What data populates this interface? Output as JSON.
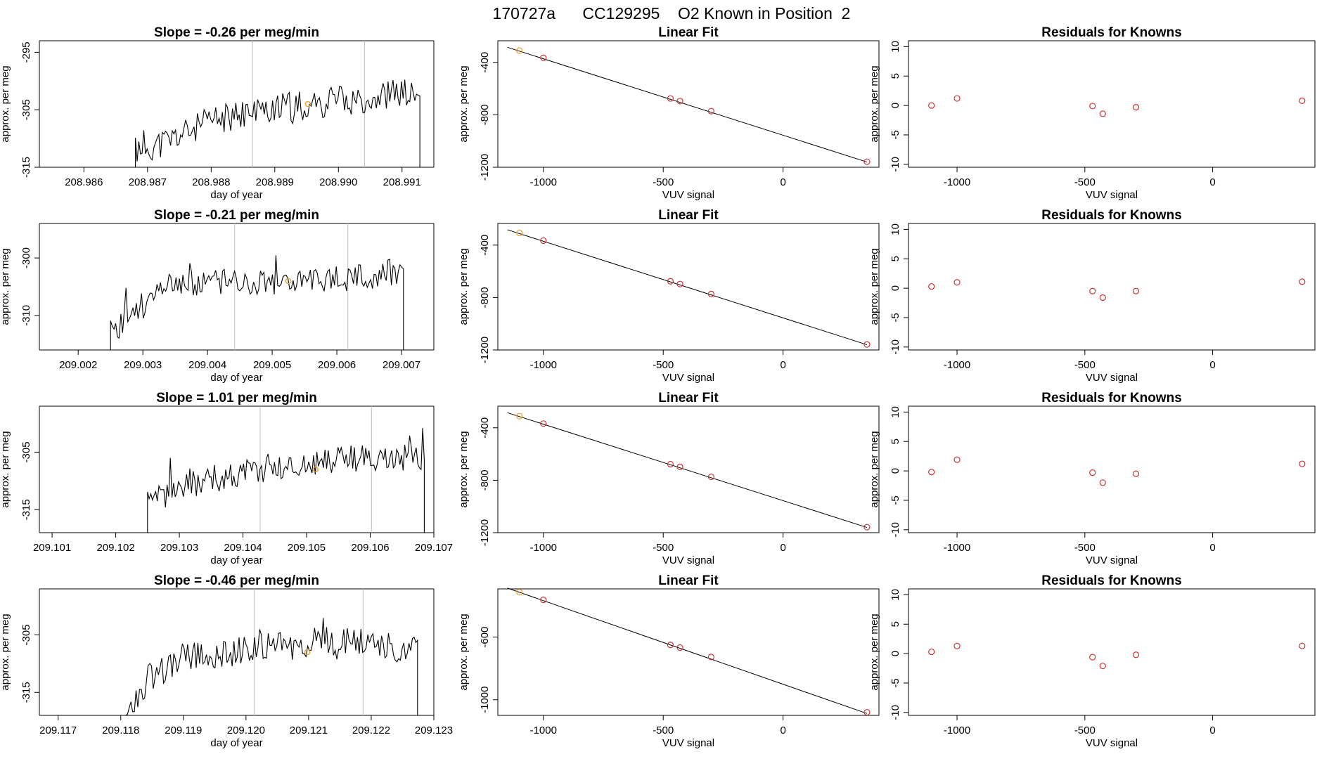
{
  "page_title": "170727a      CC129295    O2 Known in Position  2",
  "colors": {
    "line": "#000000",
    "fit_point": "#cd3333",
    "known_point": "#e8a23a",
    "divider": "#bfbfbf"
  },
  "chart_data": [
    {
      "type": "line",
      "row": 1,
      "panel": "time-series",
      "title": "Slope =  -0.26  per meg/min",
      "xlabel": "day of year",
      "ylabel": "approx. per meg",
      "xlim": [
        208.9853,
        208.9915
      ],
      "ylim": [
        -315,
        -293
      ],
      "xticks": [
        {
          "v": 208.986,
          "label": "208.986"
        },
        {
          "v": 208.987,
          "label": "208.987"
        },
        {
          "v": 208.988,
          "label": "208.988"
        },
        {
          "v": 208.989,
          "label": "208.989"
        },
        {
          "v": 208.99,
          "label": "208.990"
        },
        {
          "v": 208.991,
          "label": "208.991"
        }
      ],
      "yticks": [
        {
          "v": -295,
          "label": "-295"
        },
        {
          "v": -305,
          "label": "-305"
        },
        {
          "v": -315,
          "label": "-315"
        }
      ],
      "signal_start": 208.98681,
      "signal_end": 208.99128,
      "signal_seed": 11,
      "signal_mean": [
        [
          208.98681,
          -312
        ],
        [
          208.9872,
          -311
        ],
        [
          208.988,
          -307
        ],
        [
          208.9888,
          -305
        ],
        [
          208.9896,
          -304
        ],
        [
          208.9904,
          -303
        ],
        [
          208.991,
          -302
        ],
        [
          208.99125,
          -303
        ]
      ],
      "signal_noise": 2.6,
      "vlines": [
        208.98865,
        208.99041
      ],
      "known_mark": {
        "x": 208.98952,
        "y": -304
      }
    },
    {
      "type": "scatter",
      "row": 1,
      "panel": "linear-fit",
      "title": "Linear Fit",
      "xlabel": "VUV signal",
      "ylabel": "approx. per meg",
      "xlim": [
        -1190,
        400
      ],
      "ylim": [
        -1200,
        -235
      ],
      "xticks": [
        {
          "v": -1000,
          "label": "-1000"
        },
        {
          "v": -500,
          "label": "-500"
        },
        {
          "v": 0,
          "label": "0"
        }
      ],
      "yticks": [
        {
          "v": -400,
          "label": "-400"
        },
        {
          "v": -800,
          "label": "-800"
        },
        {
          "v": -1200,
          "label": "-1200"
        }
      ],
      "points": [
        {
          "x": -1100,
          "y": -310,
          "known": true
        },
        {
          "x": -1000,
          "y": -365
        },
        {
          "x": -470,
          "y": -675
        },
        {
          "x": -430,
          "y": -695
        },
        {
          "x": -300,
          "y": -772
        },
        {
          "x": 350,
          "y": -1158
        }
      ],
      "fit_line": [
        [
          -1150,
          -285
        ],
        [
          350,
          -1160
        ]
      ]
    },
    {
      "type": "scatter",
      "row": 1,
      "panel": "residuals",
      "title": "Residuals for Knowns",
      "xlabel": "VUV signal",
      "ylabel": "approx. per meg",
      "xlim": [
        -1190,
        400
      ],
      "ylim": [
        -10.5,
        11
      ],
      "xticks": [
        {
          "v": -1000,
          "label": "-1000"
        },
        {
          "v": -500,
          "label": "-500"
        },
        {
          "v": 0,
          "label": "0"
        }
      ],
      "yticks": [
        {
          "v": 10,
          "label": "10"
        },
        {
          "v": 5,
          "label": "5"
        },
        {
          "v": 0,
          "label": "0"
        },
        {
          "v": -5,
          "label": "-5"
        },
        {
          "v": -10,
          "label": "-10"
        }
      ],
      "points": [
        {
          "x": -1100,
          "y": 0
        },
        {
          "x": -1000,
          "y": 1.2
        },
        {
          "x": -470,
          "y": -0.1
        },
        {
          "x": -430,
          "y": -1.4
        },
        {
          "x": -300,
          "y": -0.3
        },
        {
          "x": 350,
          "y": 0.8
        }
      ]
    },
    {
      "type": "line",
      "row": 2,
      "panel": "time-series",
      "title": "Slope =  -0.21  per meg/min",
      "xlabel": "day of year",
      "ylabel": "approx. per meg",
      "xlim": [
        209.0014,
        209.0075
      ],
      "ylim": [
        -316,
        -294
      ],
      "xticks": [
        {
          "v": 209.002,
          "label": "209.002"
        },
        {
          "v": 209.003,
          "label": "209.003"
        },
        {
          "v": 209.004,
          "label": "209.004"
        },
        {
          "v": 209.005,
          "label": "209.005"
        },
        {
          "v": 209.006,
          "label": "209.006"
        },
        {
          "v": 209.007,
          "label": "209.007"
        }
      ],
      "yticks": [
        {
          "v": -300,
          "label": "-300"
        },
        {
          "v": -310,
          "label": "-310"
        }
      ],
      "signal_start": 209.0025,
      "signal_end": 209.00703,
      "signal_seed": 23,
      "signal_mean": [
        [
          209.0025,
          -313
        ],
        [
          209.0029,
          -309
        ],
        [
          209.0034,
          -305
        ],
        [
          209.0042,
          -304
        ],
        [
          209.005,
          -304
        ],
        [
          209.0058,
          -304
        ],
        [
          209.0066,
          -303
        ],
        [
          209.007,
          -302
        ]
      ],
      "signal_noise": 2.4,
      "vlines": [
        209.00442,
        209.00617
      ],
      "known_mark": {
        "x": 209.00525,
        "y": -304
      }
    },
    {
      "type": "scatter",
      "row": 2,
      "panel": "linear-fit",
      "title": "Linear Fit",
      "xlabel": "VUV signal",
      "ylabel": "approx. per meg",
      "xlim": [
        -1190,
        400
      ],
      "ylim": [
        -1200,
        -235
      ],
      "xticks": [
        {
          "v": -1000,
          "label": "-1000"
        },
        {
          "v": -500,
          "label": "-500"
        },
        {
          "v": 0,
          "label": "0"
        }
      ],
      "yticks": [
        {
          "v": -400,
          "label": "-400"
        },
        {
          "v": -800,
          "label": "-800"
        },
        {
          "v": -1200,
          "label": "-1200"
        }
      ],
      "points": [
        {
          "x": -1100,
          "y": -308,
          "known": true
        },
        {
          "x": -1000,
          "y": -366
        },
        {
          "x": -470,
          "y": -676
        },
        {
          "x": -430,
          "y": -697
        },
        {
          "x": -300,
          "y": -773
        },
        {
          "x": 350,
          "y": -1158
        }
      ],
      "fit_line": [
        [
          -1150,
          -283
        ],
        [
          350,
          -1160
        ]
      ]
    },
    {
      "type": "scatter",
      "row": 2,
      "panel": "residuals",
      "title": "Residuals for Knowns",
      "xlabel": "VUV signal",
      "ylabel": "approx. per meg",
      "xlim": [
        -1190,
        400
      ],
      "ylim": [
        -10.5,
        11
      ],
      "xticks": [
        {
          "v": -1000,
          "label": "-1000"
        },
        {
          "v": -500,
          "label": "-500"
        },
        {
          "v": 0,
          "label": "0"
        }
      ],
      "yticks": [
        {
          "v": 10,
          "label": "10"
        },
        {
          "v": 5,
          "label": "5"
        },
        {
          "v": 0,
          "label": "0"
        },
        {
          "v": -5,
          "label": "-5"
        },
        {
          "v": -10,
          "label": "-10"
        }
      ],
      "points": [
        {
          "x": -1100,
          "y": 0.3
        },
        {
          "x": -1000,
          "y": 1.0
        },
        {
          "x": -470,
          "y": -0.5
        },
        {
          "x": -430,
          "y": -1.6
        },
        {
          "x": -300,
          "y": -0.5
        },
        {
          "x": 350,
          "y": 1.1
        }
      ]
    },
    {
      "type": "line",
      "row": 3,
      "panel": "time-series",
      "title": "Slope =  1.01  per meg/min",
      "xlabel": "day of year",
      "ylabel": "approx. per meg",
      "xlim": [
        209.1008,
        209.107
      ],
      "ylim": [
        -319,
        -297
      ],
      "xticks": [
        {
          "v": 209.101,
          "label": "209.101"
        },
        {
          "v": 209.102,
          "label": "209.102"
        },
        {
          "v": 209.103,
          "label": "209.103"
        },
        {
          "v": 209.104,
          "label": "209.104"
        },
        {
          "v": 209.105,
          "label": "209.105"
        },
        {
          "v": 209.106,
          "label": "209.106"
        },
        {
          "v": 209.107,
          "label": "209.107"
        }
      ],
      "yticks": [
        {
          "v": -305,
          "label": "-305"
        },
        {
          "v": -315,
          "label": "-315"
        }
      ],
      "signal_start": 209.1025,
      "signal_end": 209.10685,
      "signal_seed": 37,
      "signal_mean": [
        [
          209.1025,
          -315
        ],
        [
          209.1029,
          -311
        ],
        [
          209.1034,
          -310
        ],
        [
          209.1042,
          -308
        ],
        [
          209.105,
          -307
        ],
        [
          209.1058,
          -306
        ],
        [
          209.1065,
          -306
        ],
        [
          209.1068,
          -306
        ]
      ],
      "signal_noise": 2.5,
      "vlines": [
        209.10427,
        209.10602
      ],
      "known_mark": {
        "x": 209.10514,
        "y": -308
      }
    },
    {
      "type": "scatter",
      "row": 3,
      "panel": "linear-fit",
      "title": "Linear Fit",
      "xlabel": "VUV signal",
      "ylabel": "approx. per meg",
      "xlim": [
        -1190,
        400
      ],
      "ylim": [
        -1200,
        -235
      ],
      "xticks": [
        {
          "v": -1000,
          "label": "-1000"
        },
        {
          "v": -500,
          "label": "-500"
        },
        {
          "v": 0,
          "label": "0"
        }
      ],
      "yticks": [
        {
          "v": -400,
          "label": "-400"
        },
        {
          "v": -800,
          "label": "-800"
        },
        {
          "v": -1200,
          "label": "-1200"
        }
      ],
      "points": [
        {
          "x": -1100,
          "y": -311,
          "known": true
        },
        {
          "x": -1000,
          "y": -368
        },
        {
          "x": -470,
          "y": -677
        },
        {
          "x": -430,
          "y": -698
        },
        {
          "x": -300,
          "y": -774
        },
        {
          "x": 350,
          "y": -1158
        }
      ],
      "fit_line": [
        [
          -1150,
          -285
        ],
        [
          350,
          -1160
        ]
      ]
    },
    {
      "type": "scatter",
      "row": 3,
      "panel": "residuals",
      "title": "Residuals for Knowns",
      "xlabel": "VUV signal",
      "ylabel": "approx. per meg",
      "xlim": [
        -1190,
        400
      ],
      "ylim": [
        -10.5,
        11
      ],
      "xticks": [
        {
          "v": -1000,
          "label": "-1000"
        },
        {
          "v": -500,
          "label": "-500"
        },
        {
          "v": 0,
          "label": "0"
        }
      ],
      "yticks": [
        {
          "v": 10,
          "label": "10"
        },
        {
          "v": 5,
          "label": "5"
        },
        {
          "v": 0,
          "label": "0"
        },
        {
          "v": -5,
          "label": "-5"
        },
        {
          "v": -10,
          "label": "-10"
        }
      ],
      "points": [
        {
          "x": -1100,
          "y": -0.2
        },
        {
          "x": -1000,
          "y": 1.9
        },
        {
          "x": -470,
          "y": -0.3
        },
        {
          "x": -430,
          "y": -2.0
        },
        {
          "x": -300,
          "y": -0.5
        },
        {
          "x": 350,
          "y": 1.2
        }
      ]
    },
    {
      "type": "line",
      "row": 4,
      "panel": "time-series",
      "title": "Slope =  -0.46  per meg/min",
      "xlabel": "day of year",
      "ylabel": "approx. per meg",
      "xlim": [
        209.1167,
        209.123
      ],
      "ylim": [
        -319,
        -297
      ],
      "xticks": [
        {
          "v": 209.117,
          "label": "209.117"
        },
        {
          "v": 209.118,
          "label": "209.118"
        },
        {
          "v": 209.119,
          "label": "209.119"
        },
        {
          "v": 209.12,
          "label": "209.120"
        },
        {
          "v": 209.121,
          "label": "209.121"
        },
        {
          "v": 209.122,
          "label": "209.122"
        },
        {
          "v": 209.123,
          "label": "209.123"
        }
      ],
      "yticks": [
        {
          "v": -305,
          "label": "-305"
        },
        {
          "v": -315,
          "label": "-315"
        }
      ],
      "signal_start": 209.11808,
      "signal_end": 209.12274,
      "signal_seed": 53,
      "signal_mean": [
        [
          209.11808,
          -318
        ],
        [
          209.1185,
          -312
        ],
        [
          209.119,
          -309
        ],
        [
          209.1198,
          -308
        ],
        [
          209.1206,
          -307
        ],
        [
          209.1214,
          -306
        ],
        [
          209.1222,
          -307
        ],
        [
          209.12274,
          -308
        ]
      ],
      "signal_noise": 2.6,
      "vlines": [
        209.12013,
        209.12187
      ],
      "known_mark": {
        "x": 209.12098,
        "y": -308
      }
    },
    {
      "type": "scatter",
      "row": 4,
      "panel": "linear-fit",
      "title": "Linear Fit",
      "xlabel": "VUV signal",
      "ylabel": "approx. per meg",
      "xlim": [
        -1190,
        400
      ],
      "ylim": [
        -1100,
        -292
      ],
      "xticks": [
        {
          "v": -1000,
          "label": "-1000"
        },
        {
          "v": -500,
          "label": "-500"
        },
        {
          "v": 0,
          "label": "0"
        }
      ],
      "yticks": [
        {
          "v": -600,
          "label": "-600"
        },
        {
          "v": -1000,
          "label": "-1000"
        }
      ],
      "points": [
        {
          "x": -1100,
          "y": -313,
          "known": true
        },
        {
          "x": -1000,
          "y": -362
        },
        {
          "x": -470,
          "y": -650
        },
        {
          "x": -430,
          "y": -667
        },
        {
          "x": -300,
          "y": -727
        },
        {
          "x": 350,
          "y": -1080
        }
      ],
      "fit_line": [
        [
          -1150,
          -287
        ],
        [
          350,
          -1088
        ]
      ]
    },
    {
      "type": "scatter",
      "row": 4,
      "panel": "residuals",
      "title": "Residuals for Knowns",
      "xlabel": "VUV signal",
      "ylabel": "approx. per meg",
      "xlim": [
        -1190,
        400
      ],
      "ylim": [
        -10.5,
        11
      ],
      "xticks": [
        {
          "v": -1000,
          "label": "-1000"
        },
        {
          "v": -500,
          "label": "-500"
        },
        {
          "v": 0,
          "label": "0"
        }
      ],
      "yticks": [
        {
          "v": 10,
          "label": "10"
        },
        {
          "v": 5,
          "label": "5"
        },
        {
          "v": 0,
          "label": "0"
        },
        {
          "v": -5,
          "label": "-5"
        },
        {
          "v": -10,
          "label": "-10"
        }
      ],
      "points": [
        {
          "x": -1100,
          "y": 0.3
        },
        {
          "x": -1000,
          "y": 1.3
        },
        {
          "x": -470,
          "y": -0.6
        },
        {
          "x": -430,
          "y": -2.1
        },
        {
          "x": -300,
          "y": -0.2
        },
        {
          "x": 350,
          "y": 1.3
        }
      ]
    }
  ]
}
